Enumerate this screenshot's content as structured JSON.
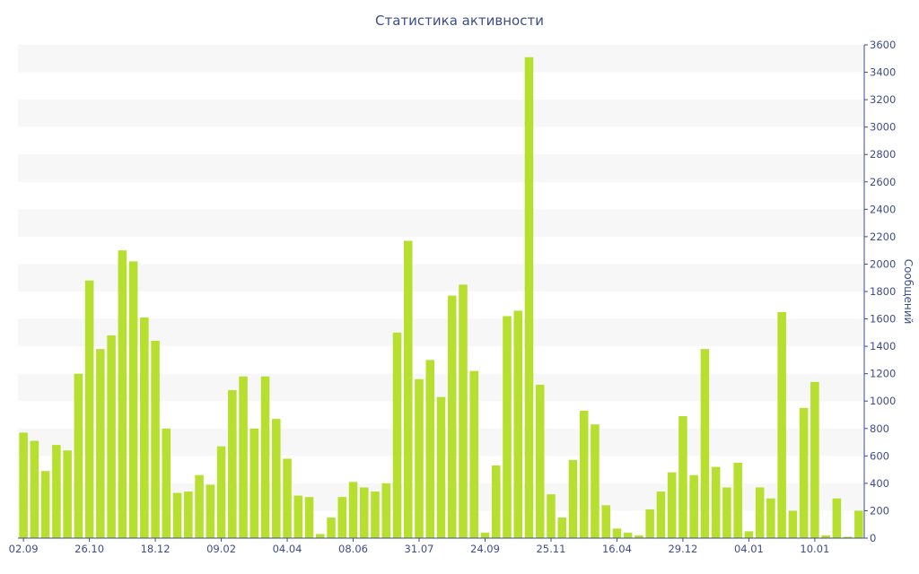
{
  "chart_data": {
    "type": "bar",
    "title": "Статистика активности",
    "xlabel": "",
    "ylabel": "Сообщений",
    "ylim": [
      0,
      3600
    ],
    "y_ticks": [
      0,
      200,
      400,
      600,
      800,
      1000,
      1200,
      1400,
      1600,
      1800,
      2000,
      2200,
      2400,
      2600,
      2800,
      3000,
      3200,
      3400,
      3600
    ],
    "y_axis_side": "right",
    "grid": "alternating horizontal bands",
    "x_tick_labels": [
      {
        "index": 0,
        "label": "02.09"
      },
      {
        "index": 6,
        "label": "26.10"
      },
      {
        "index": 12,
        "label": "18.12"
      },
      {
        "index": 18,
        "label": "09.02"
      },
      {
        "index": 24,
        "label": "04.04"
      },
      {
        "index": 30,
        "label": "08.06"
      },
      {
        "index": 36,
        "label": "31.07"
      },
      {
        "index": 42,
        "label": "24.09"
      },
      {
        "index": 48,
        "label": "25.11"
      },
      {
        "index": 54,
        "label": "16.04"
      },
      {
        "index": 60,
        "label": "29.12"
      },
      {
        "index": 66,
        "label": "04.01"
      },
      {
        "index": 72,
        "label": "10.01"
      }
    ],
    "values": [
      770,
      710,
      490,
      680,
      640,
      1200,
      1880,
      1380,
      1480,
      2100,
      2020,
      1610,
      1440,
      800,
      330,
      340,
      460,
      390,
      670,
      1080,
      1180,
      800,
      1180,
      870,
      580,
      310,
      300,
      30,
      150,
      300,
      410,
      370,
      340,
      400,
      1500,
      2170,
      1160,
      1300,
      1030,
      1770,
      1850,
      1220,
      40,
      530,
      1620,
      1660,
      3510,
      1120,
      320,
      150,
      570,
      930,
      830,
      240,
      70,
      40,
      20,
      210,
      340,
      480,
      890,
      460,
      1380,
      520,
      370,
      550,
      50,
      370,
      290,
      1650,
      200,
      950,
      1140,
      20,
      290,
      10,
      200
    ],
    "colors": {
      "bar": "#b7df2f",
      "band": "#f7f7f7",
      "axis": "#3e4d8a",
      "text": "#3e4d8a"
    }
  }
}
